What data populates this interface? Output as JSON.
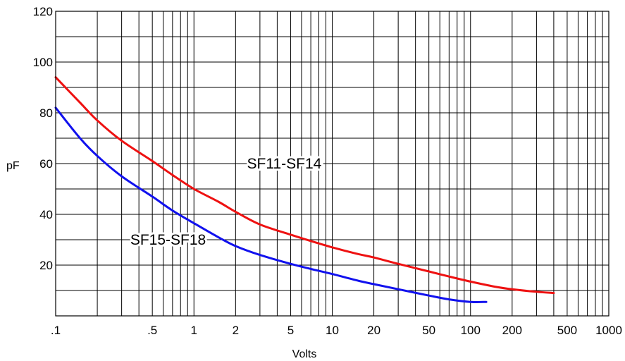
{
  "chart_data": {
    "type": "line",
    "xlabel": "Volts",
    "ylabel": "pF",
    "x_scale": "log",
    "xlim": [
      0.1,
      1000
    ],
    "ylim": [
      0,
      120
    ],
    "grid": true,
    "legend": "none",
    "x_ticks": [
      {
        "value": 0.1,
        "label": ".1"
      },
      {
        "value": 0.5,
        "label": ".5"
      },
      {
        "value": 1,
        "label": "1"
      },
      {
        "value": 2,
        "label": "2"
      },
      {
        "value": 5,
        "label": "5"
      },
      {
        "value": 10,
        "label": "10"
      },
      {
        "value": 20,
        "label": "20"
      },
      {
        "value": 50,
        "label": "50"
      },
      {
        "value": 100,
        "label": "100"
      },
      {
        "value": 200,
        "label": "200"
      },
      {
        "value": 500,
        "label": "500"
      },
      {
        "value": 1000,
        "label": "1000"
      }
    ],
    "y_ticks": [
      {
        "value": 20,
        "label": "20"
      },
      {
        "value": 40,
        "label": "40"
      },
      {
        "value": 60,
        "label": "60"
      },
      {
        "value": 80,
        "label": "80"
      },
      {
        "value": 100,
        "label": "100"
      },
      {
        "value": 120,
        "label": "120"
      }
    ],
    "series": [
      {
        "name": "SF11-SF14",
        "color": "#ee1111",
        "label_at": {
          "x": 4.5,
          "y": 60
        },
        "x": [
          0.1,
          0.15,
          0.2,
          0.3,
          0.5,
          0.7,
          1,
          1.5,
          2,
          3,
          5,
          7,
          10,
          15,
          20,
          30,
          50,
          70,
          100,
          150,
          200,
          300,
          400
        ],
        "y": [
          94,
          84,
          77,
          69,
          61,
          55.5,
          50,
          45,
          41,
          36,
          32,
          29.5,
          27,
          24.5,
          23,
          20.5,
          17.5,
          15.5,
          13.5,
          11.5,
          10.5,
          9.5,
          9
        ]
      },
      {
        "name": "SF15-SF18",
        "color": "#1111ee",
        "label_at": {
          "x": 0.65,
          "y": 30
        },
        "x": [
          0.1,
          0.15,
          0.2,
          0.3,
          0.5,
          0.7,
          1,
          1.5,
          2,
          3,
          5,
          7,
          10,
          15,
          20,
          30,
          50,
          70,
          100,
          130
        ],
        "y": [
          82,
          70,
          63,
          55,
          47,
          41.5,
          36.5,
          31,
          27.5,
          24,
          20.5,
          18.5,
          16.5,
          14,
          12.5,
          10.5,
          8,
          6.5,
          5.5,
          5.5
        ]
      }
    ]
  }
}
